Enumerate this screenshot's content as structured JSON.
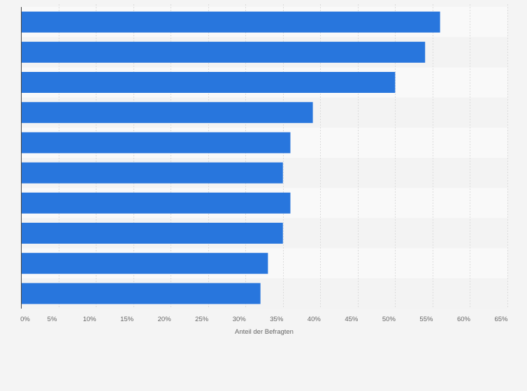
{
  "chart_data": {
    "type": "bar",
    "orientation": "horizontal",
    "categories": [
      "",
      "",
      "",
      "",
      "",
      "",
      "",
      "",
      "",
      ""
    ],
    "values": [
      56,
      54,
      50,
      39,
      36,
      35,
      36,
      35,
      33,
      32
    ],
    "xlabel": "Anteil der Befragten",
    "ylabel": "",
    "xlim": [
      0,
      65
    ],
    "unit": "%",
    "ticks": [
      0,
      5,
      10,
      15,
      20,
      25,
      30,
      35,
      40,
      45,
      50,
      55,
      60,
      65
    ],
    "tick_labels": [
      "0%",
      "5%",
      "10%",
      "15%",
      "20%",
      "25%",
      "30%",
      "35%",
      "40%",
      "45%",
      "50%",
      "55%",
      "60%",
      "65%"
    ],
    "grid": true,
    "legend": "none",
    "colors": {
      "bar": "#2876dd",
      "background": "#f4f4f4",
      "plot_band_light": "#f9f9f9",
      "plot_band_dark": "#f3f3f3",
      "grid": "#dcdcdc",
      "axis": "#444444",
      "text": "#666666"
    }
  }
}
